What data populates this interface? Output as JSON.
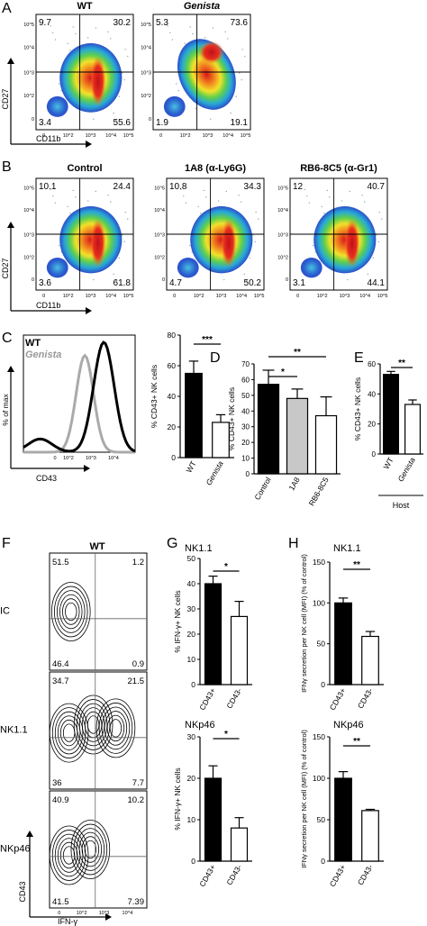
{
  "chart_data": [
    {
      "panel": "A",
      "type": "heatmap",
      "axis_labels": {
        "x": "CD11b",
        "y": "CD27"
      },
      "tick_labels": [
        "0",
        "10^2",
        "10^3",
        "10^4",
        "10^5"
      ],
      "plots": [
        {
          "title": "WT",
          "quadrants": {
            "ul": "9.7",
            "ur": "30.2",
            "ll": "3.4",
            "lr": "55.6"
          }
        },
        {
          "title": "Genista",
          "quadrants": {
            "ul": "5.3",
            "ur": "73.6",
            "ll": "1.9",
            "lr": "19.1"
          }
        }
      ]
    },
    {
      "panel": "B",
      "type": "heatmap",
      "axis_labels": {
        "x": "CD11b",
        "y": "CD27"
      },
      "plots": [
        {
          "title": "Control",
          "quadrants": {
            "ul": "10.1",
            "ur": "24.4",
            "ll": "3.6",
            "lr": "61.8"
          }
        },
        {
          "title": "1A8 (α-Ly6G)",
          "quadrants": {
            "ul": "10.8",
            "ur": "34.3",
            "ll": "4.7",
            "lr": "50.2"
          }
        },
        {
          "title": "RB6-8C5 (α-Gr1)",
          "quadrants": {
            "ul": "12",
            "ur": "40.7",
            "ll": "3.1",
            "lr": "44.1"
          }
        }
      ]
    },
    {
      "panel": "C",
      "type": "line",
      "xlabel": "CD43",
      "ylabel": "% of max",
      "series": [
        {
          "name": "WT"
        },
        {
          "name": "Genista"
        }
      ]
    },
    {
      "panel": "C",
      "type": "bar",
      "ylabel": "% CD43+ NK cells",
      "ylim": [
        0,
        80
      ],
      "yticks": [
        "0",
        "20",
        "40",
        "60",
        "80"
      ],
      "categories": [
        "WT",
        "Genista"
      ],
      "values": [
        55,
        23
      ],
      "errors": [
        8,
        5
      ],
      "significance": "***"
    },
    {
      "panel": "D",
      "type": "bar",
      "ylabel": "% CD43+ NK cells",
      "ylim": [
        0,
        70
      ],
      "yticks": [
        "0",
        "10",
        "20",
        "30",
        "40",
        "50",
        "60",
        "70"
      ],
      "categories": [
        "Control",
        "1A8",
        "RB6-8C5"
      ],
      "values": [
        57,
        48,
        37
      ],
      "errors": [
        9,
        6,
        12
      ],
      "significance": [
        "**",
        "*"
      ]
    },
    {
      "panel": "E",
      "type": "bar",
      "ylabel": "% CD43+ NK cells",
      "ylim": [
        0,
        60
      ],
      "yticks": [
        "0",
        "20",
        "40",
        "60"
      ],
      "categories": [
        "WT",
        "Genista"
      ],
      "values": [
        53,
        33
      ],
      "errors": [
        2,
        3
      ],
      "significance": "**",
      "group_label": "Host"
    },
    {
      "panel": "F",
      "type": "scatter",
      "title": "WT",
      "axis_labels": {
        "x": "IFN-γ",
        "y": "CD43"
      },
      "plots": [
        {
          "label": "IC",
          "quadrants": {
            "ul": "51.5",
            "ur": "1.2",
            "ll": "46.4",
            "lr": "0.9"
          }
        },
        {
          "label": "NK1.1",
          "quadrants": {
            "ul": "34.7",
            "ur": "21.5",
            "ll": "36",
            "lr": "7.7"
          }
        },
        {
          "label": "NKp46",
          "quadrants": {
            "ul": "40.9",
            "ur": "10.2",
            "ll": "41.5",
            "lr": "7.39"
          }
        }
      ]
    },
    {
      "panel": "G",
      "type": "bar",
      "title": "NK1.1",
      "ylabel": "% IFN-γ+ NK cells",
      "ylim": [
        0,
        50
      ],
      "yticks": [
        "0",
        "10",
        "20",
        "30",
        "40",
        "50"
      ],
      "categories": [
        "CD43+",
        "CD43-"
      ],
      "values": [
        40,
        27
      ],
      "errors": [
        3,
        6
      ],
      "significance": "*"
    },
    {
      "panel": "G",
      "type": "bar",
      "title": "NKp46",
      "ylabel": "% IFN-γ+ NK cells",
      "ylim": [
        0,
        30
      ],
      "yticks": [
        "0",
        "10",
        "20",
        "30"
      ],
      "categories": [
        "CD43+",
        "CD43-"
      ],
      "values": [
        20,
        8
      ],
      "errors": [
        3,
        2.5
      ],
      "significance": "*"
    },
    {
      "panel": "H",
      "type": "bar",
      "title": "NK1.1",
      "ylabel": "IFNγ secretion per NK cell (MFI) (% of control)",
      "ylim": [
        0,
        150
      ],
      "yticks": [
        "0",
        "50",
        "100",
        "150"
      ],
      "categories": [
        "CD43+",
        "CD43-"
      ],
      "values": [
        100,
        59
      ],
      "errors": [
        6,
        6
      ],
      "significance": "**"
    },
    {
      "panel": "H",
      "type": "bar",
      "title": "NKp46",
      "ylabel": "IFNγ secretion per NK cell (MFI) (% of control)",
      "ylim": [
        0,
        150
      ],
      "yticks": [
        "0",
        "50",
        "100",
        "150"
      ],
      "categories": [
        "CD43+",
        "CD43-"
      ],
      "values": [
        100,
        61
      ],
      "errors": [
        8,
        1.5
      ],
      "significance": "**"
    }
  ],
  "labels": {
    "panel_a": "A",
    "panel_b": "B",
    "panel_c": "C",
    "panel_d": "D",
    "panel_e": "E",
    "panel_f": "F",
    "panel_g": "G",
    "panel_h": "H",
    "sup": "+"
  },
  "colors": {
    "black_bar": "#000000",
    "grey_bar": "#c8c8c8",
    "white_bar": "#ffffff",
    "genista_line": "#aaaaaa"
  }
}
